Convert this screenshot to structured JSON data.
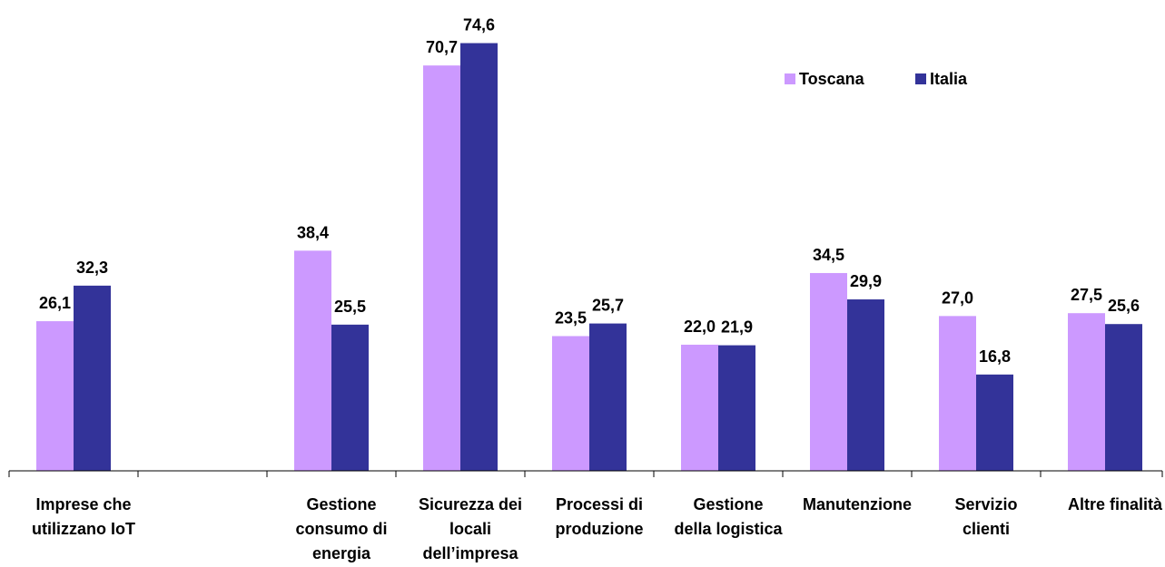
{
  "chart_data": {
    "type": "bar",
    "categories": [
      [
        "Imprese che",
        "utilizzano IoT"
      ],
      [],
      [
        "Gestione",
        "consumo di",
        "energia"
      ],
      [
        "Sicurezza dei",
        "locali",
        "dell’impresa"
      ],
      [
        "Processi di",
        "produzione"
      ],
      [
        "Gestione",
        "della logistica"
      ],
      [
        "Manutenzione"
      ],
      [
        "Servizio",
        "clienti"
      ],
      [
        "Altre finalità"
      ]
    ],
    "series": [
      {
        "name": "Toscana",
        "color": "#cc99ff",
        "values": [
          26.1,
          null,
          38.4,
          70.7,
          23.5,
          22.0,
          34.5,
          27.0,
          27.5
        ],
        "labels": [
          "26,1",
          "",
          "38,4",
          "70,7",
          "23,5",
          "22,0",
          "34,5",
          "27,0",
          "27,5"
        ]
      },
      {
        "name": "Italia",
        "color": "#333399",
        "values": [
          32.3,
          null,
          25.5,
          74.6,
          25.7,
          21.9,
          29.9,
          16.8,
          25.6
        ],
        "labels": [
          "32,3",
          "",
          "25,5",
          "74,6",
          "25,7",
          "21,9",
          "29,9",
          "16,8",
          "25,6"
        ]
      }
    ],
    "ylim": [
      0,
      80
    ],
    "grid": false,
    "legend_position": "top-right"
  }
}
